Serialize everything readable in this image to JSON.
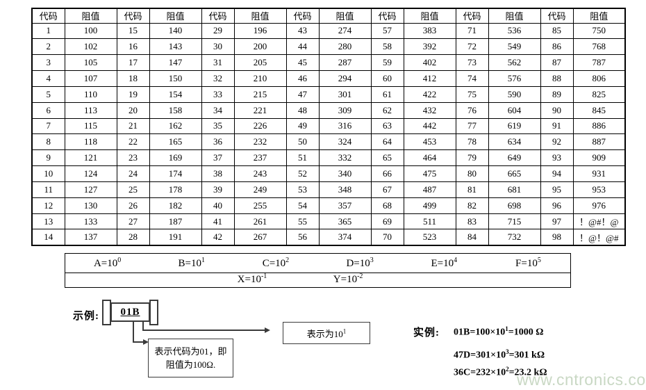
{
  "table": {
    "header": [
      "代码",
      "阻值",
      "代码",
      "阻值",
      "代码",
      "阻值",
      "代码",
      "阻值",
      "代码",
      "阻值",
      "代码",
      "阻值",
      "代码",
      "阻值"
    ],
    "rows": [
      [
        "1",
        "100",
        "15",
        "140",
        "29",
        "196",
        "43",
        "274",
        "57",
        "383",
        "71",
        "536",
        "85",
        "750"
      ],
      [
        "2",
        "102",
        "16",
        "143",
        "30",
        "200",
        "44",
        "280",
        "58",
        "392",
        "72",
        "549",
        "86",
        "768"
      ],
      [
        "3",
        "105",
        "17",
        "147",
        "31",
        "205",
        "45",
        "287",
        "59",
        "402",
        "73",
        "562",
        "87",
        "787"
      ],
      [
        "4",
        "107",
        "18",
        "150",
        "32",
        "210",
        "46",
        "294",
        "60",
        "412",
        "74",
        "576",
        "88",
        "806"
      ],
      [
        "5",
        "110",
        "19",
        "154",
        "33",
        "215",
        "47",
        "301",
        "61",
        "422",
        "75",
        "590",
        "89",
        "825"
      ],
      [
        "6",
        "113",
        "20",
        "158",
        "34",
        "221",
        "48",
        "309",
        "62",
        "432",
        "76",
        "604",
        "90",
        "845"
      ],
      [
        "7",
        "115",
        "21",
        "162",
        "35",
        "226",
        "49",
        "316",
        "63",
        "442",
        "77",
        "619",
        "91",
        "886"
      ],
      [
        "8",
        "118",
        "22",
        "165",
        "36",
        "232",
        "50",
        "324",
        "64",
        "453",
        "78",
        "634",
        "92",
        "887"
      ],
      [
        "9",
        "121",
        "23",
        "169",
        "37",
        "237",
        "51",
        "332",
        "65",
        "464",
        "79",
        "649",
        "93",
        "909"
      ],
      [
        "10",
        "124",
        "24",
        "174",
        "38",
        "243",
        "52",
        "340",
        "66",
        "475",
        "80",
        "665",
        "94",
        "931"
      ],
      [
        "11",
        "127",
        "25",
        "178",
        "39",
        "249",
        "53",
        "348",
        "67",
        "487",
        "81",
        "681",
        "95",
        "953"
      ],
      [
        "12",
        "130",
        "26",
        "182",
        "40",
        "255",
        "54",
        "357",
        "68",
        "499",
        "82",
        "698",
        "96",
        "976"
      ],
      [
        "13",
        "133",
        "27",
        "187",
        "41",
        "261",
        "55",
        "365",
        "69",
        "511",
        "83",
        "715",
        "97",
        "！@#！@"
      ],
      [
        "14",
        "137",
        "28",
        "191",
        "42",
        "267",
        "56",
        "374",
        "70",
        "523",
        "84",
        "732",
        "98",
        "！@！@#"
      ]
    ]
  },
  "legend": {
    "row1": [
      {
        "base": "A=10",
        "exp": "0"
      },
      {
        "base": "B=10",
        "exp": "1"
      },
      {
        "base": "C=10",
        "exp": "2"
      },
      {
        "base": "D=10",
        "exp": "3"
      },
      {
        "base": "E=10",
        "exp": "4"
      },
      {
        "base": "F=10",
        "exp": "5"
      }
    ],
    "row2": [
      {
        "base": "X=10",
        "exp": "-1"
      },
      {
        "base": "Y=10",
        "exp": "-2"
      }
    ]
  },
  "example": {
    "label": "示例:",
    "chip_code": "01B",
    "note_code_line1": "表示代码为01，即",
    "note_code_line2": "阻值为100Ω.",
    "note_multiplier": {
      "base": "表示为10",
      "exp": "1"
    }
  },
  "instances": {
    "label": "实例:",
    "lines": [
      {
        "base": "01B=100×10",
        "exp": "1",
        "suffix": "=1000 Ω"
      },
      {
        "base": "47D=301×10",
        "exp": "3",
        "suffix": "=301 kΩ"
      },
      {
        "base": "36C=232×10",
        "exp": "2",
        "suffix": "=23.2 kΩ"
      }
    ]
  },
  "watermark": "www.cntronics.com"
}
